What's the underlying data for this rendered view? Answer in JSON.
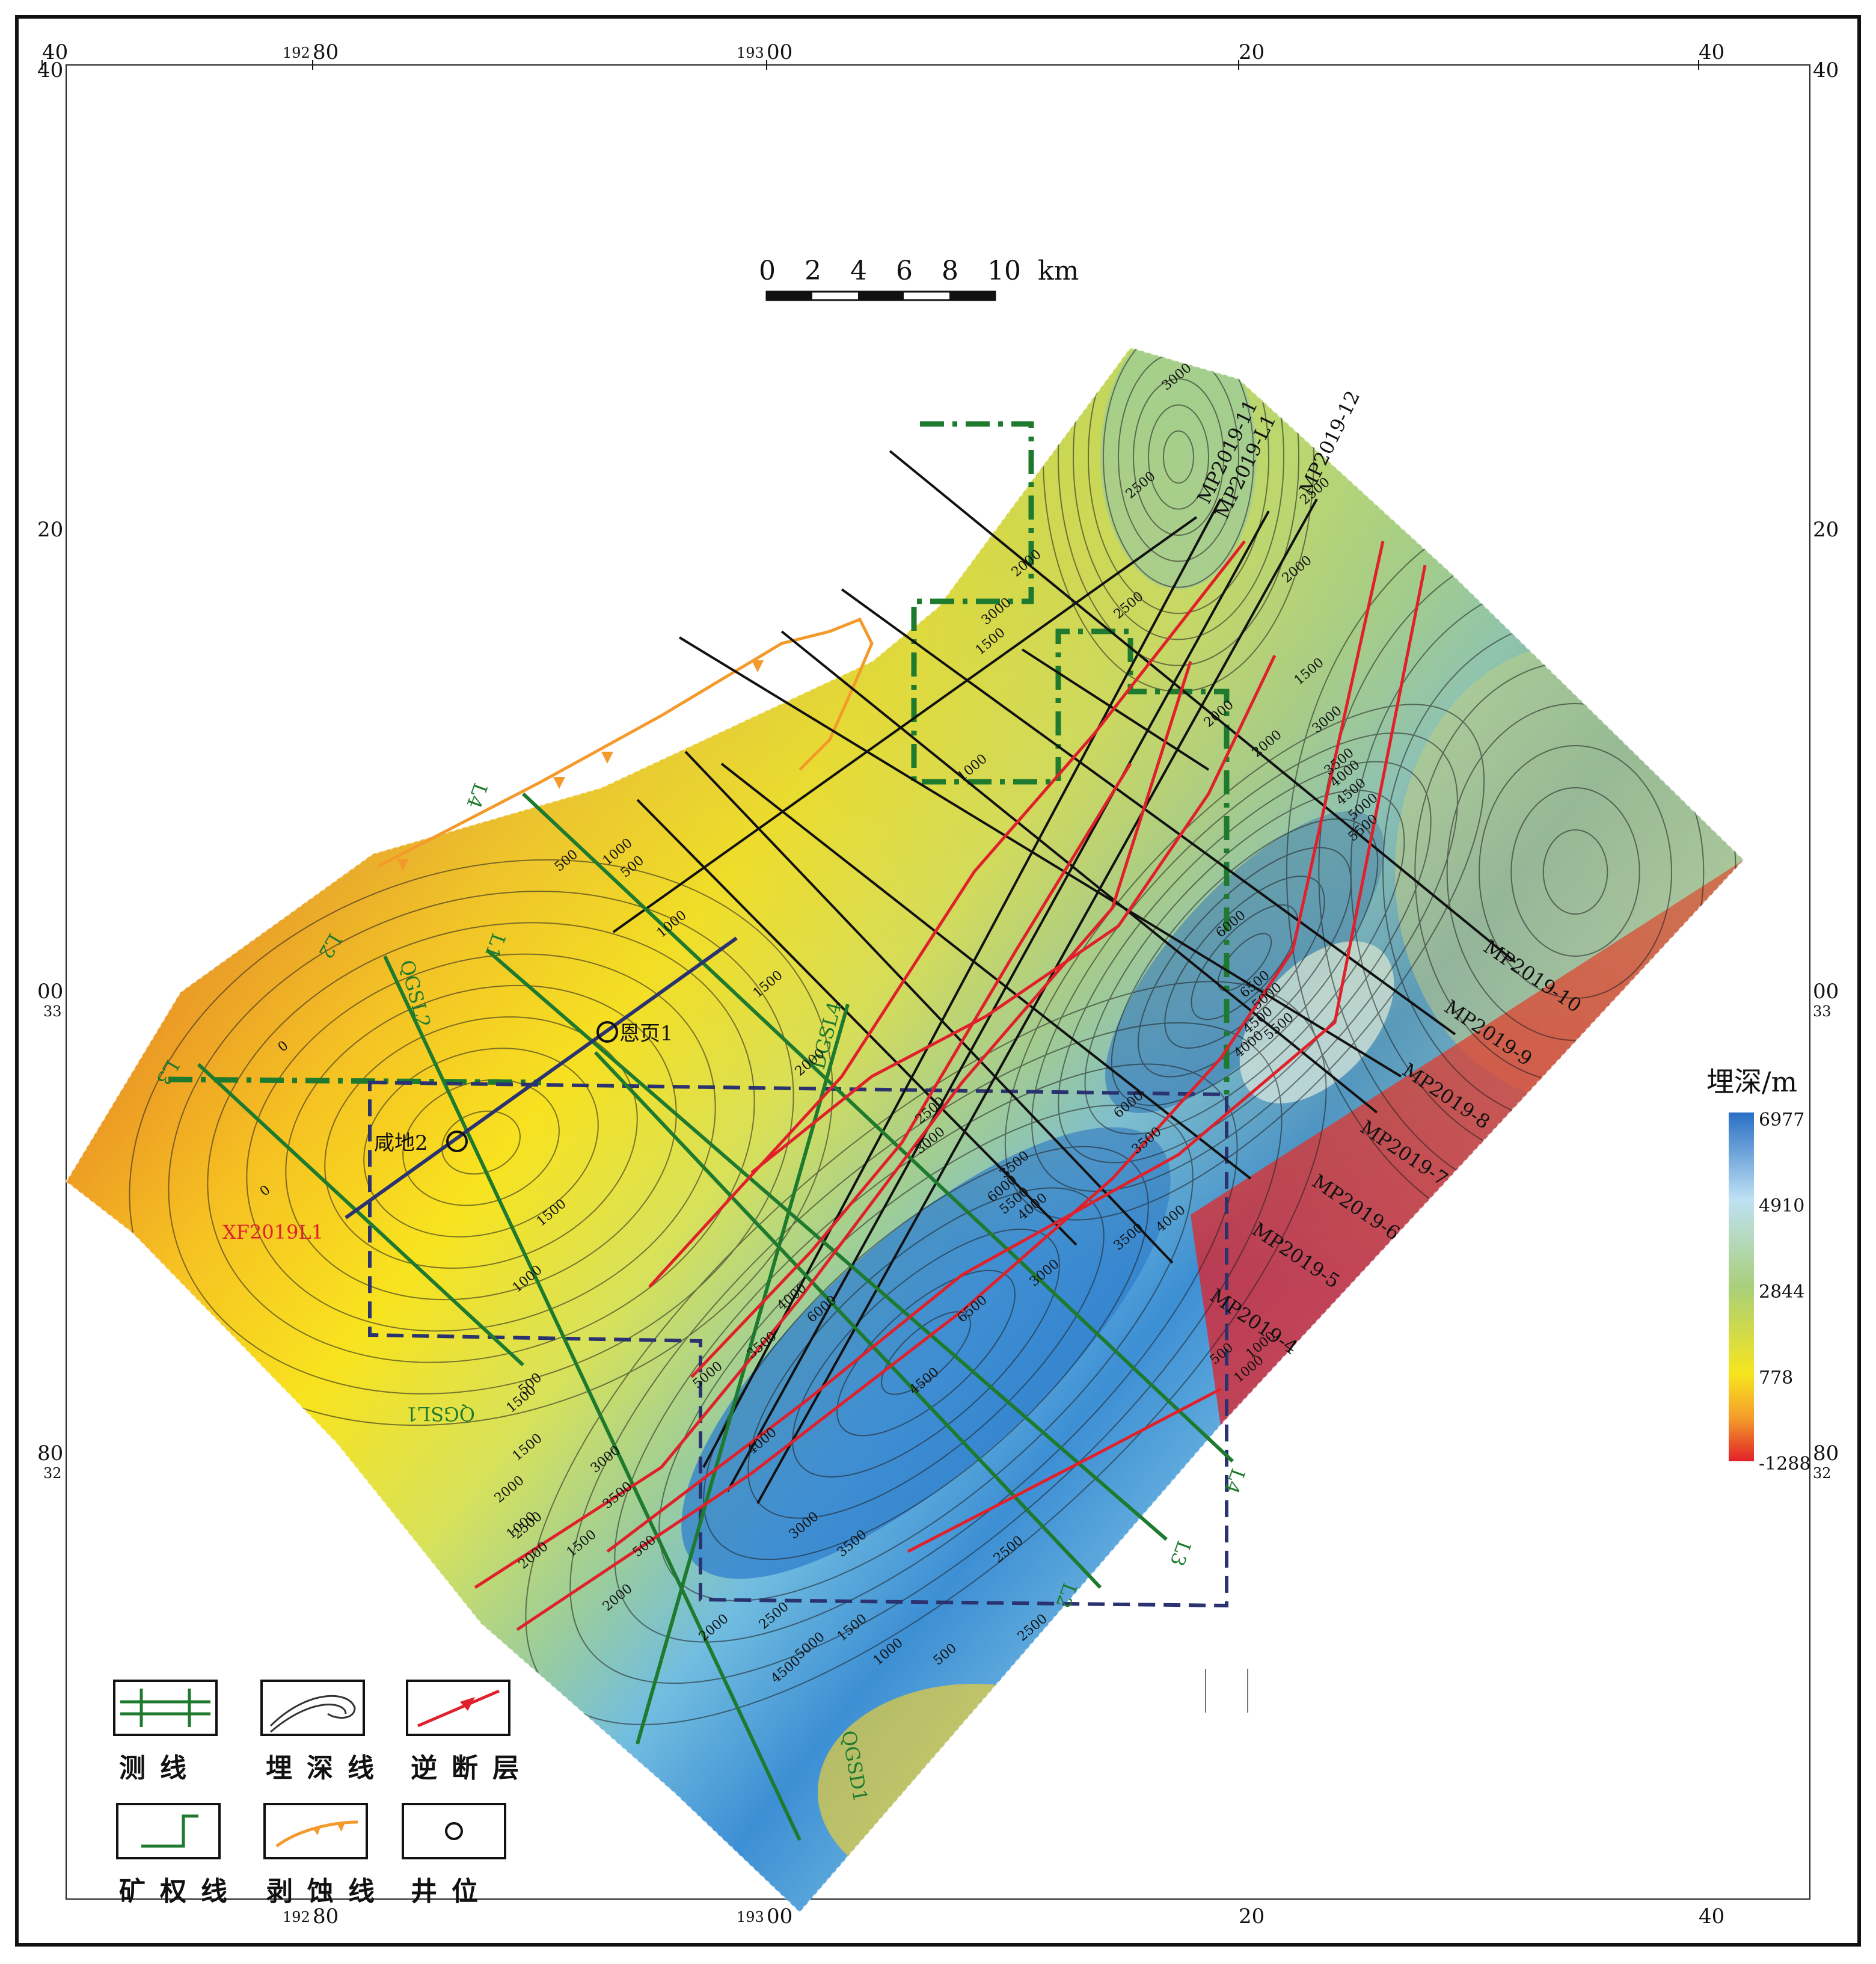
{
  "frame": {
    "top_ticks": [
      {
        "label": "40",
        "small_prefix": ""
      },
      {
        "label": "80",
        "small_prefix": "192"
      },
      {
        "label": "00",
        "small_prefix": "193"
      },
      {
        "label": "20",
        "small_prefix": ""
      },
      {
        "label": "40",
        "small_prefix": ""
      }
    ],
    "bottom_ticks": [
      {
        "label": "80",
        "small_prefix": "192"
      },
      {
        "label": "00",
        "small_prefix": "193"
      },
      {
        "label": "20",
        "small_prefix": ""
      },
      {
        "label": "40",
        "small_prefix": ""
      }
    ],
    "left_ticks": [
      {
        "label": "40",
        "sub": ""
      },
      {
        "label": "20",
        "sub": ""
      },
      {
        "label": "00",
        "sub": "33"
      },
      {
        "label": "80",
        "sub": "32"
      }
    ],
    "right_ticks": [
      {
        "label": "40",
        "sub": ""
      },
      {
        "label": "20",
        "sub": ""
      },
      {
        "label": "00",
        "sub": "33"
      },
      {
        "label": "80",
        "sub": "32"
      }
    ]
  },
  "scale_bar": {
    "labels": [
      "0",
      "2",
      "4",
      "6",
      "8",
      "10"
    ],
    "unit": "km"
  },
  "colorbar": {
    "title": "埋深/m",
    "ticks": [
      "6977",
      "4910",
      "2844",
      "778",
      "-1288"
    ],
    "colors": {
      "deep": "#2a6fc4",
      "mid_blue": "#9fd0ee",
      "green": "#a9cf7a",
      "yellow": "#f7e51e",
      "orange": "#f39a2b",
      "red": "#e2202a"
    }
  },
  "survey_lines": {
    "mp": [
      "MP2019-11",
      "MP2019-L1",
      "MP2019-12",
      "MP2019-10",
      "MP2019-9",
      "MP2019-8",
      "MP2019-7",
      "MP2019-6",
      "MP2019-5",
      "MP2019-4"
    ],
    "xf": "XF2019L1",
    "green": [
      "L4",
      "L2",
      "L1",
      "L3",
      "L4",
      "L3",
      "L2"
    ],
    "qgs": [
      "QGSL2",
      "DGSL4",
      "QGSL1",
      "QGSD1"
    ]
  },
  "wells": [
    {
      "name": "恩页1"
    },
    {
      "name": "咸地2"
    }
  ],
  "contour_labels": [
    "3000",
    "2500",
    "2000",
    "2500",
    "3000",
    "1500",
    "1000",
    "2500",
    "2000",
    "1500",
    "2000",
    "3000",
    "3500",
    "4000",
    "4500",
    "5000",
    "5500",
    "2000",
    "6000",
    "6500",
    "5500",
    "5000",
    "4500",
    "4000",
    "500",
    "1000",
    "1500",
    "2000",
    "2500",
    "3000",
    "3500",
    "4000",
    "6000",
    "3500",
    "3000",
    "4000",
    "3500",
    "5000",
    "6000",
    "5500",
    "4000",
    "3500",
    "6000",
    "6500",
    "4500",
    "4000",
    "3000",
    "3500",
    "2500",
    "2000",
    "1500",
    "1000",
    "500",
    "2000",
    "1500",
    "1000",
    "500",
    "2500",
    "2000",
    "1500",
    "500",
    "0",
    "0",
    "500",
    "1000",
    "1500",
    "1500",
    "1000",
    "3000",
    "3500",
    "2500",
    "2000",
    "2500",
    "5000",
    "4500",
    "1000",
    "1000",
    "500"
  ],
  "legend": [
    {
      "label": "测线",
      "icon": "survey-line-icon"
    },
    {
      "label": "埋深线",
      "icon": "depth-contour-icon"
    },
    {
      "label": "逆断层",
      "icon": "thrust-fault-icon"
    },
    {
      "label": "矿权线",
      "icon": "mining-boundary-icon"
    },
    {
      "label": "剥蚀线",
      "icon": "erosion-line-icon"
    },
    {
      "label": "井位",
      "icon": "well-icon"
    }
  ]
}
